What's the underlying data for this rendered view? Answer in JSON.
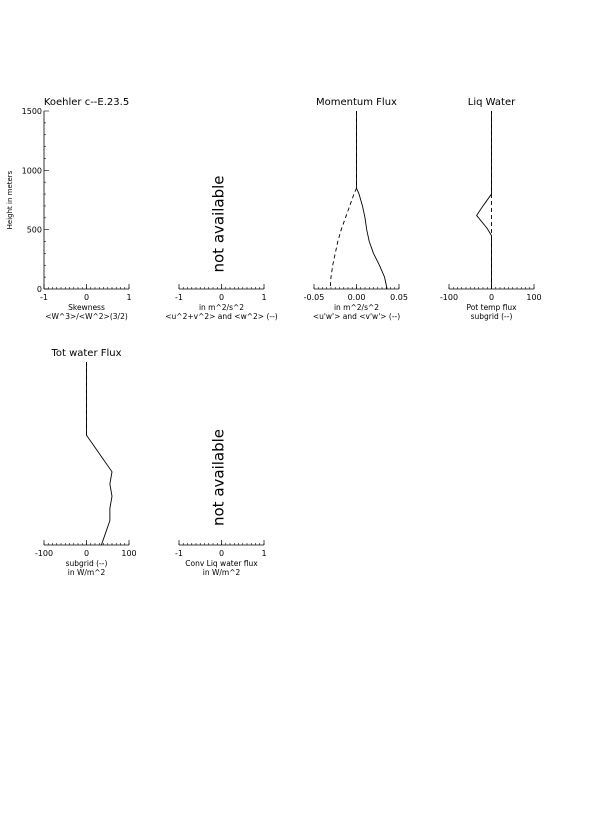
{
  "ylabel": "Height in meters",
  "chart_data": [
    {
      "id": "skewness",
      "type": "line",
      "title": "Koehler c--E.23.5",
      "xlabel_lines": [
        "Skewness",
        "<W^3>/<W^2>(3/2)"
      ],
      "xlim": [
        -1,
        1
      ],
      "xticks": [
        -1,
        0,
        1
      ],
      "xtick_labels": [
        "-1",
        "0",
        "1"
      ],
      "ylim": [
        0,
        1500
      ],
      "yticks": [
        0,
        500,
        1000,
        1500
      ],
      "ytick_labels": [
        "0",
        "500",
        "1000",
        "1500"
      ],
      "series": []
    },
    {
      "id": "variance",
      "type": "line",
      "title": "",
      "not_available": "not available",
      "xlabel_lines": [
        "in m^2/s^2",
        "<u^2+v^2> and <w^2> (--)"
      ],
      "xlim": [
        -1,
        1
      ],
      "xticks": [
        -1,
        0,
        1
      ],
      "xtick_labels": [
        "-1",
        "0",
        "1"
      ],
      "ylim": [
        0,
        1500
      ],
      "series": []
    },
    {
      "id": "momentum",
      "type": "line",
      "title": "Momentum Flux",
      "xlabel_lines": [
        "in m^2/s^2",
        "<u'w'> and <v'w'> (--)"
      ],
      "xlim": [
        -0.05,
        0.05
      ],
      "xticks": [
        -0.05,
        0,
        0.05
      ],
      "xtick_labels": [
        "-0.05",
        "0.00",
        "0.05"
      ],
      "ylim": [
        0,
        1500
      ],
      "series": [
        {
          "style": "solid",
          "points": [
            [
              0.0,
              1500
            ],
            [
              0.0,
              850
            ],
            [
              0.003,
              800
            ],
            [
              0.007,
              700
            ],
            [
              0.01,
              600
            ],
            [
              0.012,
              500
            ],
            [
              0.015,
              400
            ],
            [
              0.02,
              300
            ],
            [
              0.027,
              200
            ],
            [
              0.033,
              100
            ],
            [
              0.036,
              0
            ]
          ]
        },
        {
          "style": "dashed",
          "points": [
            [
              0.0,
              1500
            ],
            [
              0.0,
              850
            ],
            [
              -0.003,
              800
            ],
            [
              -0.008,
              700
            ],
            [
              -0.013,
              600
            ],
            [
              -0.018,
              500
            ],
            [
              -0.022,
              400
            ],
            [
              -0.025,
              300
            ],
            [
              -0.028,
              200
            ],
            [
              -0.03,
              100
            ],
            [
              -0.031,
              0
            ]
          ]
        }
      ]
    },
    {
      "id": "liqwater",
      "type": "line",
      "title": "Liq Water",
      "xlabel_lines": [
        "Pot temp flux",
        "subgrid (--)"
      ],
      "xlim": [
        -100,
        100
      ],
      "xticks": [
        -100,
        0,
        100
      ],
      "xtick_labels": [
        "-100",
        "0",
        "100"
      ],
      "ylim": [
        0,
        1500
      ],
      "series": [
        {
          "style": "solid",
          "points": [
            [
              0,
              0
            ],
            [
              0,
              450
            ],
            [
              -10,
              510
            ],
            [
              -35,
              620
            ],
            [
              -20,
              700
            ],
            [
              0,
              800
            ],
            [
              0,
              1500
            ]
          ]
        },
        {
          "style": "dashed",
          "points": [
            [
              0,
              0
            ],
            [
              0,
              1500
            ]
          ]
        }
      ]
    },
    {
      "id": "totwater",
      "type": "line",
      "title": "Tot water Flux",
      "xlabel_lines": [
        "subgrid (--)",
        "in W/m^2"
      ],
      "xlim": [
        -100,
        100
      ],
      "xticks": [
        -100,
        0,
        100
      ],
      "xtick_labels": [
        "-100",
        "0",
        "100"
      ],
      "ylim": [
        0,
        1500
      ],
      "series": [
        {
          "style": "solid",
          "points": [
            [
              35,
              0
            ],
            [
              45,
              100
            ],
            [
              55,
              200
            ],
            [
              55,
              300
            ],
            [
              60,
              400
            ],
            [
              55,
              500
            ],
            [
              60,
              600
            ],
            [
              40,
              700
            ],
            [
              20,
              800
            ],
            [
              0,
              900
            ],
            [
              0,
              1500
            ]
          ]
        },
        {
          "style": "dashed",
          "points": [
            [
              0,
              900
            ],
            [
              0,
              1500
            ]
          ]
        }
      ]
    },
    {
      "id": "convliq",
      "type": "line",
      "title": "",
      "not_available": "not available",
      "xlabel_lines": [
        "Conv Liq water flux",
        "in W/m^2"
      ],
      "xlim": [
        -1,
        1
      ],
      "xticks": [
        -1,
        0,
        1
      ],
      "xtick_labels": [
        "-1",
        "0",
        "1"
      ],
      "ylim": [
        0,
        1500
      ],
      "series": []
    }
  ]
}
